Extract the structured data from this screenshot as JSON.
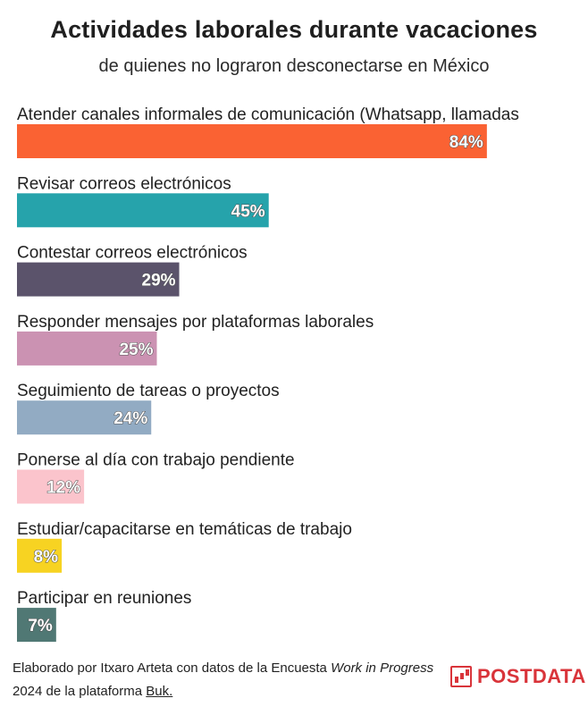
{
  "chart_data": {
    "type": "bar",
    "orientation": "horizontal",
    "title": "Actividades laborales durante vacaciones",
    "subtitle": "de quienes no lograron desconectarse en México",
    "unit": "%",
    "categories": [
      "Atender canales informales de comunicación (Whatsapp, llamadas",
      "Revisar correos electrónicos",
      "Contestar correos electrónicos",
      "Responder mensajes por plataformas laborales",
      "Seguimiento de tareas o proyectos",
      "Ponerse al día con trabajo pendiente",
      "Estudiar/capacitarse en temáticas de trabajo",
      "Participar en reuniones"
    ],
    "values": [
      84,
      45,
      29,
      25,
      24,
      12,
      8,
      7
    ],
    "value_labels": [
      "84%",
      "45%",
      "29%",
      "25%",
      "24%",
      "12%",
      "8%",
      "7%"
    ],
    "colors": [
      "#fa6233",
      "#26a3ab",
      "#5b536b",
      "#cb92b2",
      "#92abc3",
      "#fbc4cc",
      "#f7d322",
      "#507874"
    ],
    "xlim": [
      0,
      100
    ]
  },
  "footer": {
    "credit_before": "Elaborado por Itxaro Arteta con datos de la Encuesta ",
    "credit_italic": "Work in Progress",
    "credit_after": " 2024 de la plataforma ",
    "credit_link": "Buk."
  },
  "brand": {
    "name": "POSTDATA",
    "icon": "bar-chart-icon",
    "color": "#d9343a"
  }
}
